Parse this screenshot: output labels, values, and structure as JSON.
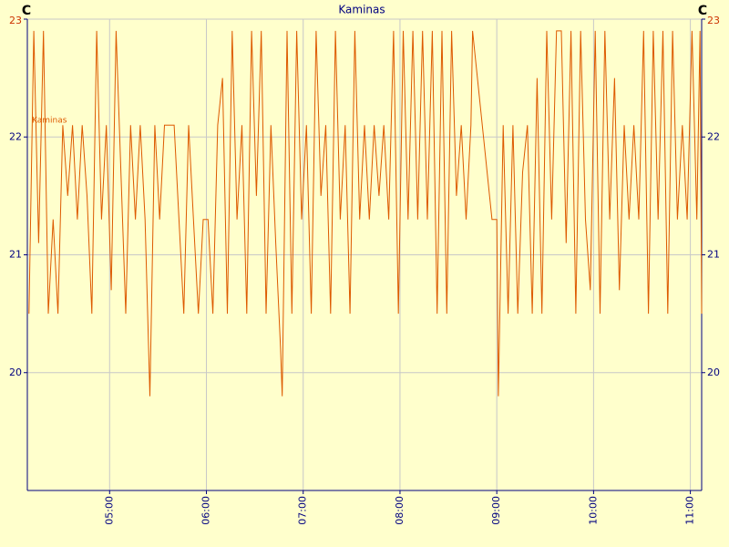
{
  "chart_data": {
    "type": "line",
    "title": "Kaminas",
    "ylabel": "C",
    "x": [
      "04:10",
      "04:13",
      "04:16",
      "04:19",
      "04:22",
      "04:25",
      "04:28",
      "04:31",
      "04:34",
      "04:37",
      "04:40",
      "04:43",
      "04:46",
      "04:49",
      "04:52",
      "04:55",
      "04:58",
      "05:01",
      "05:04",
      "05:07",
      "05:10",
      "05:13",
      "05:16",
      "05:19",
      "05:22",
      "05:25",
      "05:28",
      "05:31",
      "05:34",
      "05:37",
      "05:40",
      "05:43",
      "05:46",
      "05:49",
      "05:52",
      "05:55",
      "05:58",
      "06:01",
      "06:04",
      "06:07",
      "06:10",
      "06:13",
      "06:16",
      "06:19",
      "06:22",
      "06:25",
      "06:28",
      "06:31",
      "06:34",
      "06:37",
      "06:40",
      "06:43",
      "06:46",
      "06:47",
      "06:50",
      "06:53",
      "06:56",
      "06:59",
      "07:02",
      "07:05",
      "07:08",
      "07:11",
      "07:14",
      "07:17",
      "07:20",
      "07:23",
      "07:26",
      "07:29",
      "07:32",
      "07:35",
      "07:38",
      "07:41",
      "07:44",
      "07:47",
      "07:50",
      "07:53",
      "07:56",
      "07:59",
      "08:02",
      "08:05",
      "08:08",
      "08:11",
      "08:14",
      "08:17",
      "08:20",
      "08:23",
      "08:26",
      "08:29",
      "08:32",
      "08:35",
      "08:38",
      "08:41",
      "08:44",
      "08:45",
      "08:57",
      "09:00",
      "09:01",
      "09:04",
      "09:07",
      "09:10",
      "09:13",
      "09:16",
      "09:19",
      "09:22",
      "09:25",
      "09:28",
      "09:31",
      "09:34",
      "09:37",
      "09:40",
      "09:43",
      "09:46",
      "09:49",
      "09:52",
      "09:55",
      "09:58",
      "10:01",
      "10:04",
      "10:07",
      "10:10",
      "10:13",
      "10:16",
      "10:19",
      "10:22",
      "10:25",
      "10:28",
      "10:31",
      "10:34",
      "10:37",
      "10:40",
      "10:43",
      "10:46",
      "10:49",
      "10:52",
      "10:55",
      "10:58",
      "11:01",
      "11:04",
      "11:06",
      "11:07"
    ],
    "series": [
      {
        "name": "Kaminas",
        "color": "#dd5a00",
        "values": [
          20.5,
          22.9,
          21.1,
          22.9,
          20.5,
          21.3,
          20.5,
          22.1,
          21.5,
          22.1,
          21.3,
          22.1,
          21.5,
          20.5,
          22.9,
          21.3,
          22.1,
          20.7,
          22.9,
          21.7,
          20.5,
          22.1,
          21.3,
          22.1,
          21.3,
          19.8,
          22.1,
          21.3,
          22.1,
          22.1,
          22.1,
          21.3,
          20.5,
          22.1,
          21.3,
          20.5,
          21.3,
          21.3,
          20.5,
          22.1,
          22.5,
          20.5,
          22.9,
          21.3,
          22.1,
          20.5,
          22.9,
          21.5,
          22.9,
          20.5,
          22.1,
          21.1,
          20.2,
          19.8,
          22.9,
          20.5,
          22.9,
          21.3,
          22.1,
          20.5,
          22.9,
          21.5,
          22.1,
          20.5,
          22.9,
          21.3,
          22.1,
          20.5,
          22.9,
          21.3,
          22.1,
          21.3,
          22.1,
          21.5,
          22.1,
          21.3,
          22.9,
          20.5,
          22.9,
          21.3,
          22.9,
          21.3,
          22.9,
          21.3,
          22.9,
          20.5,
          22.9,
          20.5,
          22.9,
          21.5,
          22.1,
          21.3,
          22.1,
          22.9,
          21.3,
          21.3,
          19.8,
          22.1,
          20.5,
          22.1,
          20.5,
          21.7,
          22.1,
          20.5,
          22.5,
          20.5,
          22.9,
          21.3,
          22.9,
          22.9,
          21.1,
          22.9,
          20.5,
          22.9,
          21.3,
          20.7,
          22.9,
          20.5,
          22.9,
          21.3,
          22.5,
          20.7,
          22.1,
          21.3,
          22.1,
          21.3,
          22.9,
          20.5,
          22.9,
          21.3,
          22.9,
          20.5,
          22.9,
          21.3,
          22.1,
          21.3,
          22.9,
          21.3,
          22.9,
          20.5
        ]
      }
    ],
    "xlim": [
      "04:09",
      "11:07"
    ],
    "xticks": [
      "05:00",
      "06:00",
      "07:00",
      "08:00",
      "09:00",
      "10:00",
      "11:00"
    ],
    "ylim": [
      19,
      23
    ],
    "yticks": [
      20,
      21,
      22,
      23
    ],
    "grid": true
  }
}
